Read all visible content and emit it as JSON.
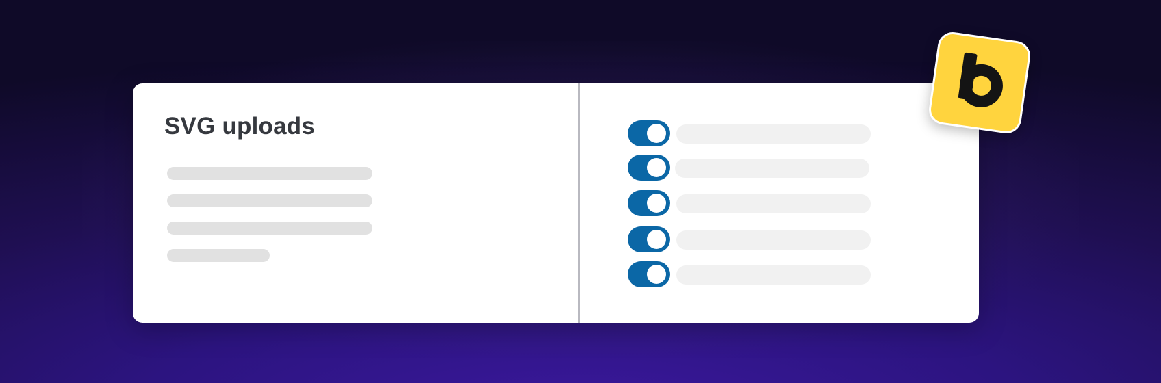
{
  "settings_card": {
    "title": "SVG uploads",
    "description_placeholder_lines": 4,
    "toggles": [
      {
        "state": "on"
      },
      {
        "state": "on"
      },
      {
        "state": "on"
      },
      {
        "state": "on"
      },
      {
        "state": "on"
      }
    ]
  },
  "brand_badge": {
    "letter": "b",
    "background_color": "#ffd43e"
  },
  "colors": {
    "toggle_on": "#0b67a6",
    "title_text": "#36393f",
    "placeholder_bar": "#e1e1e1",
    "row_placeholder": "#f1f1f1",
    "background_top": "#0f0a28",
    "background_bottom": "#3a189c"
  },
  "icons": {
    "badge": "brand-b-logo-icon"
  }
}
